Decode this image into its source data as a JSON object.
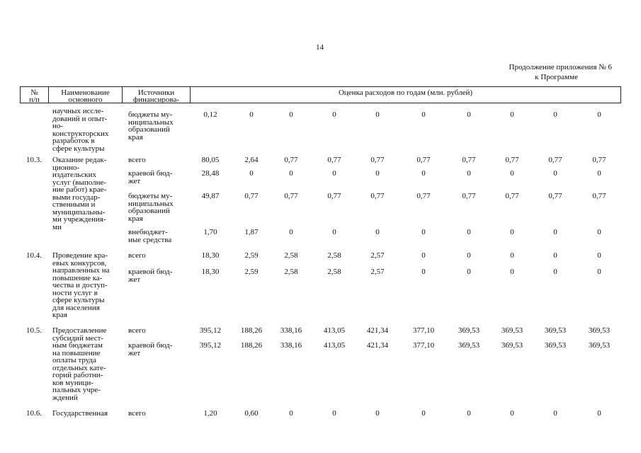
{
  "page_number": "14",
  "appendix": [
    "Продолжение приложения № 6",
    "к Программе"
  ],
  "table": {
    "header": {
      "num": [
        "№",
        "п/п"
      ],
      "name": [
        "Наименование",
        "основного"
      ],
      "source": [
        "Источники",
        "финансирова-"
      ],
      "costs": "Оценка расходов по годам (млн. рублей)"
    },
    "rows": [
      {
        "name": [
          "научных иссле-",
          "дований и опыт-",
          "но-",
          "конструкторских",
          "разработок в",
          "сфере культуры"
        ],
        "sources": [
          {
            "label": [
              "бюджеты му-",
              "ниципальных",
              "образований",
              "края"
            ],
            "values": [
              "0,12",
              "0",
              "0",
              "0",
              "0",
              "0",
              "0",
              "0",
              "0",
              "0"
            ]
          }
        ]
      },
      {
        "num": "10.3.",
        "name": [
          "Оказание редак-",
          "ционно-",
          "издательских",
          "услуг (выполне-",
          "ние работ) крае-",
          "выми государ-",
          "ственными и",
          "муниципальны-",
          "ми учреждения-",
          "ми"
        ],
        "sources": [
          {
            "label": [
              "всего"
            ],
            "values": [
              "80,05",
              "2,64",
              "0,77",
              "0,77",
              "0,77",
              "0,77",
              "0,77",
              "0,77",
              "0,77",
              "0,77"
            ]
          },
          {
            "label": [
              "краевой бюд-",
              "жет"
            ],
            "values": [
              "28,48",
              "0",
              "0",
              "0",
              "0",
              "0",
              "0",
              "0",
              "0",
              "0"
            ]
          },
          {
            "label": [
              "бюджеты му-",
              "ниципальных",
              "образований",
              "края"
            ],
            "values": [
              "49,87",
              "0,77",
              "0,77",
              "0,77",
              "0,77",
              "0,77",
              "0,77",
              "0,77",
              "0,77",
              "0,77"
            ]
          },
          {
            "label": [
              "внебюджет-",
              "ные средства"
            ],
            "values": [
              "1,70",
              "1,87",
              "0",
              "0",
              "0",
              "0",
              "0",
              "0",
              "0",
              "0"
            ]
          }
        ]
      },
      {
        "num": "10.4.",
        "name": [
          "Проведение кра-",
          "евых конкурсов,",
          "направленных на",
          "повышение ка-",
          "чества и доступ-",
          "ности услуг в",
          "сфере культуры",
          "для населения",
          "края"
        ],
        "sources": [
          {
            "label": [
              "всего"
            ],
            "values": [
              "18,30",
              "2,59",
              "2,58",
              "2,58",
              "2,57",
              "0",
              "0",
              "0",
              "0",
              "0"
            ]
          },
          {
            "label": [
              "краевой бюд-",
              "жет"
            ],
            "values": [
              "18,30",
              "2,59",
              "2,58",
              "2,58",
              "2,57",
              "0",
              "0",
              "0",
              "0",
              "0"
            ]
          }
        ]
      },
      {
        "num": "10.5.",
        "name": [
          "Предоставление",
          "субсидий мест-",
          "ным бюджетам",
          "на повышение",
          "оплаты труда",
          "отдельных кате-",
          "горий работни-",
          "ков муници-",
          "пальных учре-",
          "ждений"
        ],
        "sources": [
          {
            "label": [
              "всего"
            ],
            "values": [
              "395,12",
              "188,26",
              "338,16",
              "413,05",
              "421,34",
              "377,10",
              "369,53",
              "369,53",
              "369,53",
              "369,53"
            ]
          },
          {
            "label": [
              "краевой бюд-",
              "жет"
            ],
            "values": [
              "395,12",
              "188,26",
              "338,16",
              "413,05",
              "421,34",
              "377,10",
              "369,53",
              "369,53",
              "369,53",
              "369,53"
            ]
          }
        ]
      },
      {
        "num": "10.6.",
        "name": [
          "Государственная"
        ],
        "sources": [
          {
            "label": [
              "всего"
            ],
            "values": [
              "1,20",
              "0,60",
              "0",
              "0",
              "0",
              "0",
              "0",
              "0",
              "0",
              "0"
            ]
          }
        ]
      }
    ]
  }
}
